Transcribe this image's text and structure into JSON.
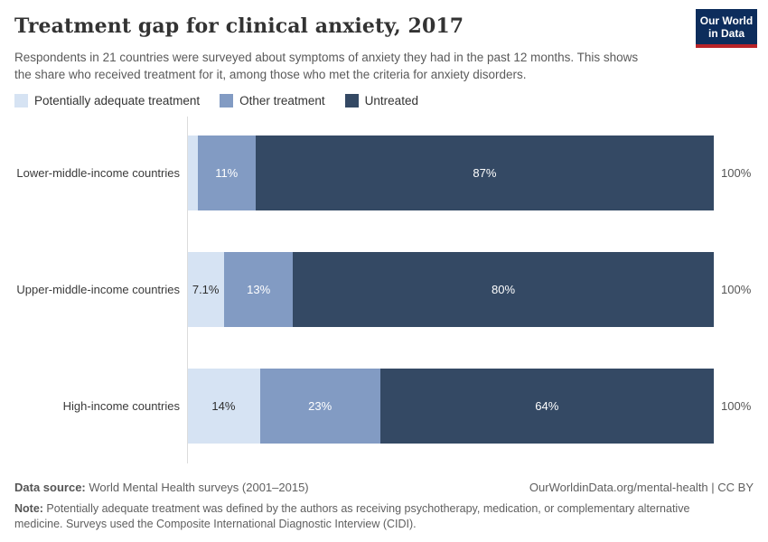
{
  "header": {
    "title": "Treatment gap for clinical anxiety, 2017",
    "subtitle": "Respondents in 21 countries were surveyed about symptoms of anxiety they had in the past 12 months. This shows the share who received treatment for it, among those who met the criteria for anxiety disorders.",
    "logo": {
      "line1": "Our World",
      "line2": "in Data",
      "bg_color": "#0d2d5c",
      "accent_color": "#b92328"
    }
  },
  "chart_data": {
    "type": "bar",
    "stacked": true,
    "orientation": "horizontal",
    "xlim": [
      0,
      100
    ],
    "grid": false,
    "legend_position": "top",
    "categories": [
      "Lower-middle-income countries",
      "Upper-middle-income countries",
      "High-income countries"
    ],
    "series": [
      {
        "name": "Potentially adequate treatment",
        "color": "#d6e3f3",
        "values": [
          2,
          7.1,
          14
        ],
        "labels": [
          "",
          "7.1%",
          "14%"
        ]
      },
      {
        "name": "Other treatment",
        "color": "#829bc3",
        "values": [
          11,
          13,
          23
        ],
        "labels": [
          "11%",
          "13%",
          "23%"
        ]
      },
      {
        "name": "Untreated",
        "color": "#344964",
        "values": [
          87,
          80,
          64
        ],
        "labels": [
          "87%",
          "80%",
          "64%"
        ]
      }
    ],
    "total_label": "100%"
  },
  "footer": {
    "source_label": "Data source:",
    "source_text": " World Mental Health surveys (2001–2015)",
    "license_text": "OurWorldinData.org/mental-health | CC BY",
    "note_label": "Note:",
    "note_text": " Potentially adequate treatment was defined by the authors as receiving psychotherapy, medication, or complementary alternative medicine. Surveys used the Composite International Diagnostic Interview (CIDI)."
  }
}
